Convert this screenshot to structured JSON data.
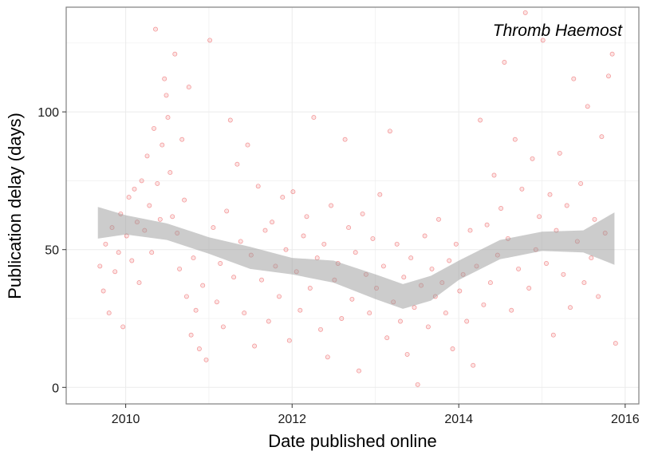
{
  "chart_data": {
    "type": "scatter",
    "title": "",
    "annotation": "Thromb Haemost",
    "xlabel": "Date published online",
    "ylabel": "Publication delay (days)",
    "xlim": [
      "2009-04-15",
      "2016-03-01"
    ],
    "ylim": [
      -6,
      138
    ],
    "x_ticks": [
      {
        "label": "2010",
        "date": "2010-01-01"
      },
      {
        "label": "2012",
        "date": "2012-01-01"
      },
      {
        "label": "2014",
        "date": "2014-01-01"
      },
      {
        "label": "2016",
        "date": "2016-01-01"
      }
    ],
    "y_ticks": [
      0,
      50,
      100
    ],
    "grid": true,
    "colors": {
      "points": "#e41a1c",
      "band": "#999999",
      "panel_border": "#7f7f7f",
      "grid": "#ebebeb"
    },
    "trend": {
      "x": [
        "2009-09-01",
        "2010-01-01",
        "2010-07-01",
        "2011-01-01",
        "2011-07-01",
        "2012-01-01",
        "2012-07-01",
        "2013-01-01",
        "2013-05-01",
        "2013-09-01",
        "2014-01-01",
        "2014-07-01",
        "2015-01-01",
        "2015-07-01",
        "2015-11-15"
      ],
      "y": [
        59.5,
        59.0,
        56.5,
        51.5,
        47.0,
        44.0,
        42.0,
        36.5,
        33.0,
        36.0,
        42.5,
        50.0,
        53.0,
        53.0,
        54.0
      ],
      "lower": [
        54.0,
        55.5,
        53.5,
        48.5,
        43.0,
        41.0,
        38.0,
        32.0,
        28.5,
        31.5,
        39.0,
        46.5,
        49.5,
        49.0,
        44.5
      ],
      "upper": [
        65.5,
        62.5,
        59.5,
        54.5,
        51.0,
        47.0,
        46.0,
        41.0,
        37.5,
        40.5,
        46.0,
        53.5,
        56.5,
        57.0,
        63.5
      ]
    },
    "series": [
      {
        "points": [
          [
            "2009-09-10",
            44
          ],
          [
            "2009-09-25",
            35
          ],
          [
            "2009-10-05",
            52
          ],
          [
            "2009-10-20",
            27
          ],
          [
            "2009-11-02",
            58
          ],
          [
            "2009-11-15",
            42
          ],
          [
            "2009-12-01",
            49
          ],
          [
            "2009-12-10",
            63
          ],
          [
            "2009-12-20",
            22
          ],
          [
            "2010-01-05",
            55
          ],
          [
            "2010-01-15",
            69
          ],
          [
            "2010-01-28",
            46
          ],
          [
            "2010-02-08",
            72
          ],
          [
            "2010-02-20",
            60
          ],
          [
            "2010-03-01",
            38
          ],
          [
            "2010-03-12",
            75
          ],
          [
            "2010-03-25",
            57
          ],
          [
            "2010-04-05",
            84
          ],
          [
            "2010-04-15",
            66
          ],
          [
            "2010-04-25",
            49
          ],
          [
            "2010-05-05",
            94
          ],
          [
            "2010-05-12",
            130
          ],
          [
            "2010-05-20",
            74
          ],
          [
            "2010-06-01",
            61
          ],
          [
            "2010-06-10",
            88
          ],
          [
            "2010-06-20",
            112
          ],
          [
            "2010-06-28",
            106
          ],
          [
            "2010-07-05",
            98
          ],
          [
            "2010-07-15",
            78
          ],
          [
            "2010-07-25",
            62
          ],
          [
            "2010-08-05",
            121
          ],
          [
            "2010-08-15",
            56
          ],
          [
            "2010-08-25",
            43
          ],
          [
            "2010-09-05",
            90
          ],
          [
            "2010-09-15",
            68
          ],
          [
            "2010-09-25",
            33
          ],
          [
            "2010-10-05",
            109
          ],
          [
            "2010-10-15",
            19
          ],
          [
            "2010-10-25",
            47
          ],
          [
            "2010-11-05",
            28
          ],
          [
            "2010-11-20",
            14
          ],
          [
            "2010-12-05",
            37
          ],
          [
            "2010-12-20",
            10
          ],
          [
            "2011-01-05",
            126
          ],
          [
            "2011-01-20",
            58
          ],
          [
            "2011-02-05",
            31
          ],
          [
            "2011-02-20",
            45
          ],
          [
            "2011-03-05",
            22
          ],
          [
            "2011-03-20",
            64
          ],
          [
            "2011-04-05",
            97
          ],
          [
            "2011-04-20",
            40
          ],
          [
            "2011-05-05",
            81
          ],
          [
            "2011-05-20",
            53
          ],
          [
            "2011-06-05",
            27
          ],
          [
            "2011-06-20",
            88
          ],
          [
            "2011-07-05",
            48
          ],
          [
            "2011-07-20",
            15
          ],
          [
            "2011-08-05",
            73
          ],
          [
            "2011-08-20",
            39
          ],
          [
            "2011-09-05",
            57
          ],
          [
            "2011-09-20",
            24
          ],
          [
            "2011-10-05",
            60
          ],
          [
            "2011-10-20",
            44
          ],
          [
            "2011-11-05",
            33
          ],
          [
            "2011-11-20",
            69
          ],
          [
            "2011-12-05",
            50
          ],
          [
            "2011-12-20",
            17
          ],
          [
            "2012-01-05",
            71
          ],
          [
            "2012-01-20",
            42
          ],
          [
            "2012-02-05",
            28
          ],
          [
            "2012-02-20",
            55
          ],
          [
            "2012-03-05",
            62
          ],
          [
            "2012-03-20",
            36
          ],
          [
            "2012-04-05",
            98
          ],
          [
            "2012-04-20",
            47
          ],
          [
            "2012-05-05",
            21
          ],
          [
            "2012-05-20",
            52
          ],
          [
            "2012-06-05",
            11
          ],
          [
            "2012-06-20",
            66
          ],
          [
            "2012-07-05",
            39
          ],
          [
            "2012-07-20",
            45
          ],
          [
            "2012-08-05",
            25
          ],
          [
            "2012-08-20",
            90
          ],
          [
            "2012-09-05",
            58
          ],
          [
            "2012-09-20",
            32
          ],
          [
            "2012-10-05",
            49
          ],
          [
            "2012-10-20",
            6
          ],
          [
            "2012-11-05",
            63
          ],
          [
            "2012-11-20",
            41
          ],
          [
            "2012-12-05",
            27
          ],
          [
            "2012-12-20",
            54
          ],
          [
            "2013-01-05",
            36
          ],
          [
            "2013-01-20",
            70
          ],
          [
            "2013-02-05",
            44
          ],
          [
            "2013-02-20",
            18
          ],
          [
            "2013-03-05",
            93
          ],
          [
            "2013-03-20",
            31
          ],
          [
            "2013-04-05",
            52
          ],
          [
            "2013-04-20",
            24
          ],
          [
            "2013-05-05",
            40
          ],
          [
            "2013-05-20",
            12
          ],
          [
            "2013-06-05",
            47
          ],
          [
            "2013-06-20",
            29
          ],
          [
            "2013-07-05",
            1
          ],
          [
            "2013-07-20",
            37
          ],
          [
            "2013-08-05",
            55
          ],
          [
            "2013-08-20",
            22
          ],
          [
            "2013-09-05",
            43
          ],
          [
            "2013-09-20",
            33
          ],
          [
            "2013-10-05",
            61
          ],
          [
            "2013-10-20",
            38
          ],
          [
            "2013-11-05",
            27
          ],
          [
            "2013-11-20",
            46
          ],
          [
            "2013-12-05",
            14
          ],
          [
            "2013-12-20",
            52
          ],
          [
            "2014-01-05",
            35
          ],
          [
            "2014-01-20",
            41
          ],
          [
            "2014-02-05",
            24
          ],
          [
            "2014-02-20",
            57
          ],
          [
            "2014-03-05",
            8
          ],
          [
            "2014-03-20",
            44
          ],
          [
            "2014-04-05",
            97
          ],
          [
            "2014-04-20",
            30
          ],
          [
            "2014-05-05",
            59
          ],
          [
            "2014-05-20",
            38
          ],
          [
            "2014-06-05",
            77
          ],
          [
            "2014-06-20",
            48
          ],
          [
            "2014-07-05",
            65
          ],
          [
            "2014-07-20",
            118
          ],
          [
            "2014-08-05",
            54
          ],
          [
            "2014-08-20",
            28
          ],
          [
            "2014-09-05",
            90
          ],
          [
            "2014-09-20",
            43
          ],
          [
            "2014-10-05",
            72
          ],
          [
            "2014-10-20",
            136
          ],
          [
            "2014-11-05",
            36
          ],
          [
            "2014-11-20",
            83
          ],
          [
            "2014-12-05",
            50
          ],
          [
            "2014-12-20",
            62
          ],
          [
            "2015-01-05",
            126
          ],
          [
            "2015-01-20",
            45
          ],
          [
            "2015-02-05",
            70
          ],
          [
            "2015-02-20",
            19
          ],
          [
            "2015-03-05",
            57
          ],
          [
            "2015-03-20",
            85
          ],
          [
            "2015-04-05",
            41
          ],
          [
            "2015-04-20",
            66
          ],
          [
            "2015-05-05",
            29
          ],
          [
            "2015-05-20",
            112
          ],
          [
            "2015-06-05",
            53
          ],
          [
            "2015-06-20",
            74
          ],
          [
            "2015-07-05",
            38
          ],
          [
            "2015-07-20",
            102
          ],
          [
            "2015-08-05",
            47
          ],
          [
            "2015-08-20",
            61
          ],
          [
            "2015-09-05",
            33
          ],
          [
            "2015-09-20",
            91
          ],
          [
            "2015-10-05",
            56
          ],
          [
            "2015-10-20",
            113
          ],
          [
            "2015-11-05",
            121
          ],
          [
            "2015-11-20",
            16
          ]
        ]
      }
    ]
  }
}
